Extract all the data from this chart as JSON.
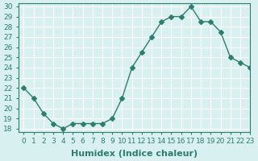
{
  "xlabel": "Humidex (Indice chaleur)",
  "ylabel": "",
  "x": [
    0,
    1,
    2,
    3,
    4,
    5,
    6,
    7,
    8,
    9,
    10,
    11,
    12,
    13,
    14,
    15,
    16,
    17,
    18,
    19,
    20,
    21,
    22,
    23
  ],
  "y": [
    22,
    21,
    19.5,
    18.5,
    18,
    18.5,
    18.5,
    18.5,
    18.5,
    19,
    21,
    24,
    25.5,
    27,
    28.5,
    29,
    29,
    30,
    28.5,
    28.5,
    27.5,
    25,
    24.5,
    24
  ],
  "line_color": "#2e7d6e",
  "marker": "D",
  "marker_size": 3,
  "bg_color": "#d9f0f0",
  "grid_color": "#ffffff",
  "ylim_min": 18,
  "ylim_max": 30,
  "yticks": [
    18,
    19,
    20,
    21,
    22,
    23,
    24,
    25,
    26,
    27,
    28,
    29,
    30
  ],
  "xlim_min": -0.5,
  "xlim_max": 23,
  "xticks": [
    0,
    1,
    2,
    3,
    4,
    5,
    6,
    7,
    8,
    9,
    10,
    11,
    12,
    13,
    14,
    15,
    16,
    17,
    18,
    19,
    20,
    21,
    22,
    23
  ],
  "tick_label_fontsize": 6.5,
  "xlabel_fontsize": 8,
  "tick_color": "#2e7d6e",
  "label_color": "#2e7d6e"
}
